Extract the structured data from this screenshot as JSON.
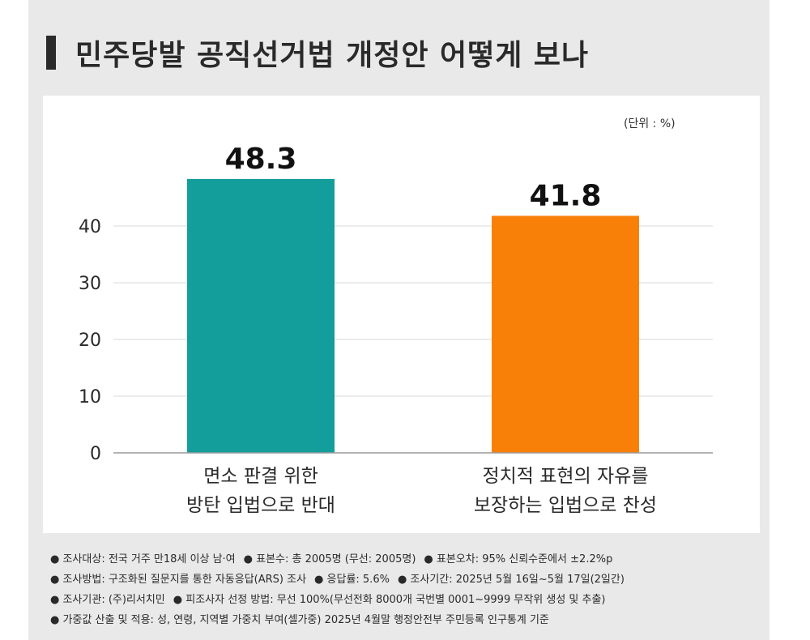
{
  "header": {
    "title": "민주당발 공직선거법 개정안 어떻게 보나"
  },
  "unit_label": "(단위 : %)",
  "colors": {
    "bar_1": "#139e9b",
    "bar_2": "#f88009",
    "grid": "#d8d8d8",
    "text": "#2a2a2a"
  },
  "chart_data": {
    "type": "bar",
    "categories": [
      [
        "면소 판결 위한",
        "방탄 입법으로 반대"
      ],
      [
        "정치적 표현의 자유를",
        "보장하는 입법으로 찬성"
      ]
    ],
    "values": [
      48.3,
      41.8
    ],
    "value_labels": [
      "48.3",
      "41.8"
    ],
    "ylim": [
      0,
      50
    ],
    "yticks": [
      0,
      10,
      20,
      30,
      40
    ],
    "grid": true,
    "title": "",
    "xlabel": "",
    "ylabel": ""
  },
  "notes": [
    [
      "● 조사대상: 전국 거주 만18세 이상 남·여",
      "● 표본수: 총 2005명 (무선: 2005명)",
      "● 표본오차: 95% 신뢰수준에서 ±2.2%p"
    ],
    [
      "● 조사방법: 구조화된 질문지를 통한 자동응답(ARS) 조사",
      "● 응답률: 5.6%",
      "● 조사기간: 2025년 5월 16일~5월 17일(2일간)"
    ],
    [
      "● 조사기관: (주)리서치민",
      "● 피조사자 선정 방법: 무선 100%(무선전화 8000개 국번별 0001~9999 무작위 생성 및 추출)"
    ],
    [
      "● 가중값 산출 및 적용: 성, 연령, 지역별 가중치 부여(셀가중) 2025년 4월말 행정안전부 주민등록 인구통계 기준"
    ]
  ]
}
